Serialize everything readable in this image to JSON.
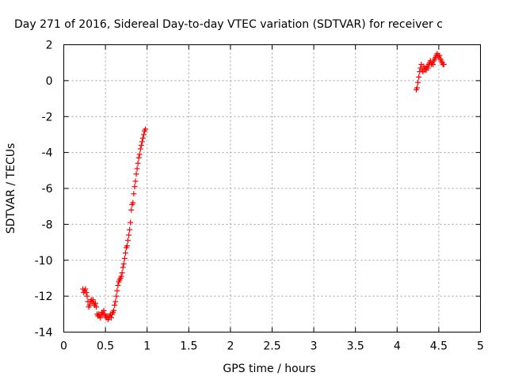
{
  "chart_data": {
    "type": "scatter",
    "title": "Day 271 of 2016, Sidereal Day-to-day VTEC variation (SDTVAR) for receiver c",
    "xlabel": "GPS time / hours",
    "ylabel": "SDTVAR / TECUs",
    "xlim": [
      0,
      5
    ],
    "ylim": [
      -14,
      2
    ],
    "xticks": [
      "0",
      "0.5",
      "1",
      "1.5",
      "2",
      "2.5",
      "3",
      "3.5",
      "4",
      "4.5",
      "5"
    ],
    "yticks": [
      "2",
      "0",
      "-2",
      "-4",
      "-6",
      "-8",
      "-10",
      "-12",
      "-14"
    ],
    "grid": true,
    "marker": "plus",
    "color": "#ff0000",
    "series": [
      {
        "name": "SDTVAR",
        "x": [
          0.23,
          0.24,
          0.25,
          0.26,
          0.27,
          0.28,
          0.29,
          0.3,
          0.31,
          0.32,
          0.33,
          0.34,
          0.35,
          0.36,
          0.37,
          0.38,
          0.39,
          0.4,
          0.41,
          0.42,
          0.43,
          0.44,
          0.45,
          0.46,
          0.47,
          0.48,
          0.49,
          0.5,
          0.51,
          0.52,
          0.53,
          0.54,
          0.55,
          0.56,
          0.57,
          0.58,
          0.59,
          0.6,
          0.61,
          0.62,
          0.63,
          0.64,
          0.65,
          0.66,
          0.67,
          0.68,
          0.69,
          0.7,
          0.71,
          0.72,
          0.73,
          0.74,
          0.75,
          0.76,
          0.77,
          0.78,
          0.79,
          0.8,
          0.81,
          0.82,
          0.83,
          0.84,
          0.85,
          0.86,
          0.87,
          0.88,
          0.89,
          0.9,
          0.91,
          0.92,
          0.93,
          0.94,
          0.95,
          0.96,
          0.97,
          0.98,
          4.23,
          4.24,
          4.25,
          4.26,
          4.27,
          4.28,
          4.29,
          4.3,
          4.31,
          4.32,
          4.33,
          4.34,
          4.35,
          4.36,
          4.37,
          4.38,
          4.39,
          4.4,
          4.41,
          4.42,
          4.43,
          4.44,
          4.45,
          4.46,
          4.47,
          4.48,
          4.49,
          4.5,
          4.51,
          4.52,
          4.53,
          4.54,
          4.55,
          4.56
        ],
        "y": [
          -11.6,
          -11.8,
          -11.7,
          -11.6,
          -11.8,
          -12.0,
          -12.3,
          -12.6,
          -12.5,
          -12.3,
          -12.2,
          -12.3,
          -12.2,
          -12.4,
          -12.5,
          -12.4,
          -12.6,
          -13.0,
          -13.1,
          -13.0,
          -13.1,
          -13.2,
          -13.0,
          -12.9,
          -13.0,
          -12.8,
          -13.0,
          -13.1,
          -13.2,
          -13.1,
          -13.3,
          -13.2,
          -13.1,
          -13.0,
          -13.2,
          -13.0,
          -12.9,
          -12.8,
          -12.5,
          -12.3,
          -12.0,
          -11.7,
          -11.4,
          -11.2,
          -11.1,
          -11.0,
          -10.9,
          -10.7,
          -10.4,
          -10.2,
          -9.9,
          -9.6,
          -9.3,
          -9.2,
          -8.9,
          -8.6,
          -8.3,
          -7.9,
          -7.2,
          -6.9,
          -6.8,
          -6.3,
          -5.9,
          -5.6,
          -5.2,
          -4.9,
          -4.6,
          -4.3,
          -4.1,
          -3.8,
          -3.6,
          -3.4,
          -3.2,
          -3.0,
          -2.8,
          -2.7,
          -0.5,
          -0.4,
          -0.1,
          0.2,
          0.5,
          0.7,
          0.9,
          0.6,
          0.5,
          0.8,
          0.6,
          0.7,
          0.6,
          0.8,
          0.7,
          0.9,
          1.0,
          1.1,
          0.9,
          1.0,
          0.9,
          1.1,
          1.2,
          1.3,
          1.4,
          1.5,
          1.4,
          1.3,
          1.4,
          1.2,
          1.1,
          1.0,
          0.9,
          0.9
        ]
      }
    ]
  }
}
